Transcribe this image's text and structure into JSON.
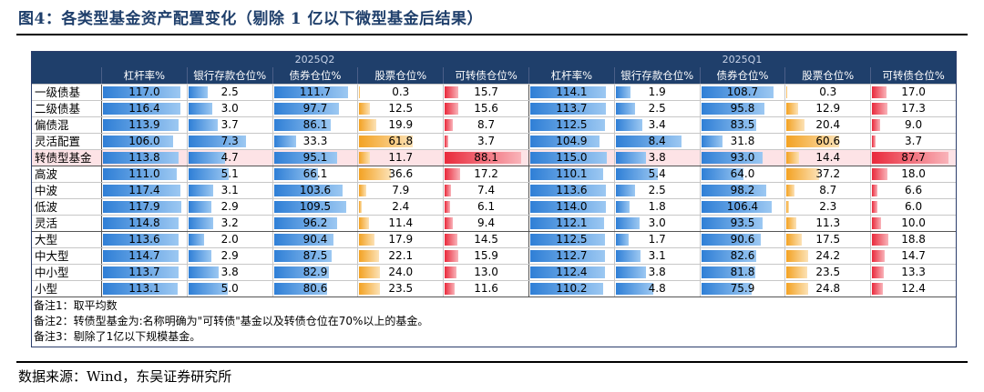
{
  "title": "图4：各类型基金资产配置变化（剔除 1 亿以下微型基金后结果）",
  "source": "数据来源：Wind，东吴证券研究所",
  "groups": [
    "2025Q2",
    "2025Q1"
  ],
  "columns": [
    "杠杆率%",
    "银行存款仓位%",
    "债券仓位%",
    "股票仓位%",
    "可转债仓位%"
  ],
  "rows": [
    {
      "label": "一级债基",
      "q2": [
        "117.0",
        "2.5",
        "111.7",
        "0.3",
        "15.7"
      ],
      "q1": [
        "114.1",
        "1.9",
        "108.7",
        "0.3",
        "17.0"
      ]
    },
    {
      "label": "二级债基",
      "q2": [
        "116.4",
        "3.0",
        "97.7",
        "12.5",
        "15.6"
      ],
      "q1": [
        "113.7",
        "2.5",
        "95.8",
        "12.9",
        "17.3"
      ]
    },
    {
      "label": "偏债混",
      "q2": [
        "113.9",
        "3.7",
        "86.1",
        "19.9",
        "8.7"
      ],
      "q1": [
        "112.5",
        "3.4",
        "83.5",
        "20.4",
        "9.0"
      ]
    },
    {
      "label": "灵活配置",
      "q2": [
        "106.0",
        "7.3",
        "33.3",
        "61.8",
        "3.7"
      ],
      "q1": [
        "104.9",
        "8.4",
        "31.8",
        "60.6",
        "3.7"
      ]
    },
    {
      "label": "转债型基金",
      "q2": [
        "113.8",
        "4.7",
        "95.1",
        "11.7",
        "88.1"
      ],
      "q1": [
        "115.0",
        "3.8",
        "93.0",
        "14.4",
        "87.7"
      ]
    },
    {
      "label": "高波",
      "q2": [
        "111.0",
        "5.1",
        "66.1",
        "36.6",
        "17.2"
      ],
      "q1": [
        "110.1",
        "5.4",
        "64.0",
        "37.2",
        "18.0"
      ]
    },
    {
      "label": "中波",
      "q2": [
        "117.4",
        "3.1",
        "103.6",
        "7.9",
        "7.4"
      ],
      "q1": [
        "113.6",
        "2.5",
        "98.2",
        "8.7",
        "6.6"
      ]
    },
    {
      "label": "低波",
      "q2": [
        "117.9",
        "2.9",
        "109.5",
        "2.4",
        "6.1"
      ],
      "q1": [
        "114.0",
        "1.8",
        "106.4",
        "2.3",
        "6.0"
      ]
    },
    {
      "label": "灵活",
      "q2": [
        "114.8",
        "3.2",
        "96.2",
        "11.4",
        "9.4"
      ],
      "q1": [
        "112.1",
        "3.0",
        "93.5",
        "11.3",
        "10.0"
      ]
    },
    {
      "label": "大型",
      "q2": [
        "113.6",
        "2.0",
        "90.4",
        "17.9",
        "14.5"
      ],
      "q1": [
        "112.5",
        "1.7",
        "90.6",
        "17.5",
        "18.8"
      ]
    },
    {
      "label": "中大型",
      "q2": [
        "114.7",
        "2.9",
        "87.5",
        "22.1",
        "15.9"
      ],
      "q1": [
        "112.7",
        "3.1",
        "82.6",
        "24.2",
        "14.7"
      ]
    },
    {
      "label": "中小型",
      "q2": [
        "113.7",
        "3.8",
        "82.9",
        "24.0",
        "13.0"
      ],
      "q1": [
        "112.4",
        "3.8",
        "81.8",
        "23.5",
        "13.3"
      ]
    },
    {
      "label": "小型",
      "q2": [
        "113.1",
        "5.0",
        "80.6",
        "23.5",
        "11.6"
      ],
      "q1": [
        "110.2",
        "4.8",
        "75.9",
        "24.8",
        "12.4"
      ]
    }
  ],
  "notes": [
    "备注1：取平均数",
    "备注2：转债型基金为:名称明确为\"可转债\"基金以及转债仓位在70%以上的基金。",
    "备注3：剔除了1亿以下规模基金。"
  ],
  "colors": {
    "header": "#1f3f6b",
    "title": "#1f3f6b",
    "bar_blue": "#2f7fd6",
    "bar_orange": "#f3a223",
    "bar_red": "#e9293b",
    "highlight_row": "#fde3e6"
  }
}
